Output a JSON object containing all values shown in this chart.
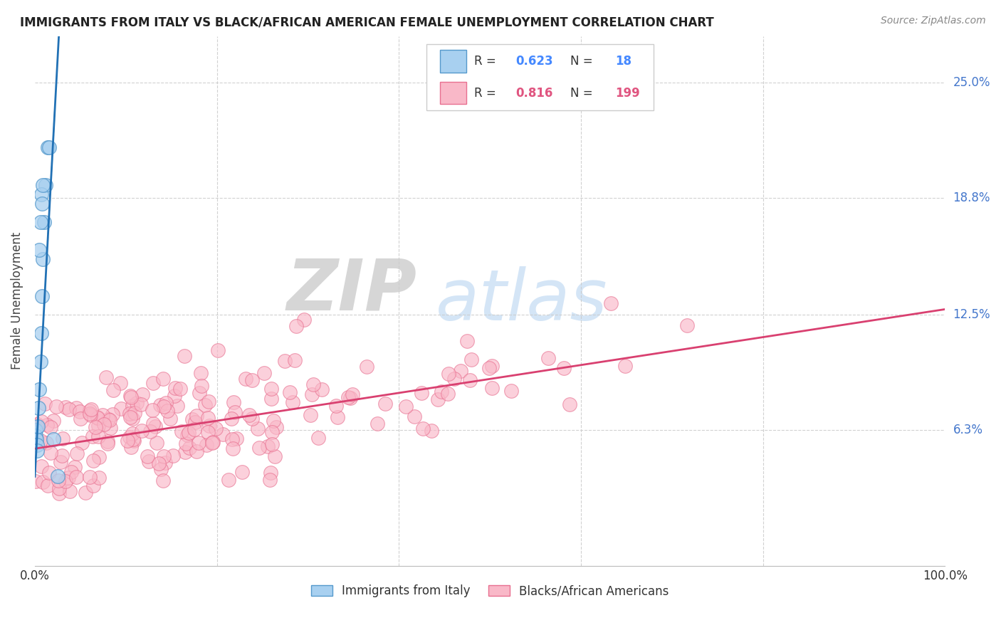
{
  "title": "IMMIGRANTS FROM ITALY VS BLACK/AFRICAN AMERICAN FEMALE UNEMPLOYMENT CORRELATION CHART",
  "source": "Source: ZipAtlas.com",
  "ylabel": "Female Unemployment",
  "ytick_labels": [
    "6.3%",
    "12.5%",
    "18.8%",
    "25.0%"
  ],
  "ytick_values": [
    0.063,
    0.125,
    0.188,
    0.25
  ],
  "xlim": [
    0.0,
    1.0
  ],
  "ylim": [
    -0.01,
    0.275
  ],
  "color_italy": "#a8d0f0",
  "color_italy_edge": "#5599cc",
  "color_italy_line": "#2171b5",
  "color_black": "#f9b8c8",
  "color_black_edge": "#e87090",
  "color_black_line": "#d94070",
  "R_italy": "0.623",
  "N_italy": "18",
  "R_black": "0.816",
  "N_black": "199",
  "legend_labels": [
    "Immigrants from Italy",
    "Blacks/African Americans"
  ],
  "watermark_zip": "ZIP",
  "watermark_atlas": "atlas",
  "background_color": "#ffffff",
  "grid_color": "#cccccc",
  "tick_color": "#4477cc",
  "italy_slope_line": 9.0,
  "italy_intercept_line": 0.038,
  "black_slope_line": 0.075,
  "black_intercept_line": 0.053
}
